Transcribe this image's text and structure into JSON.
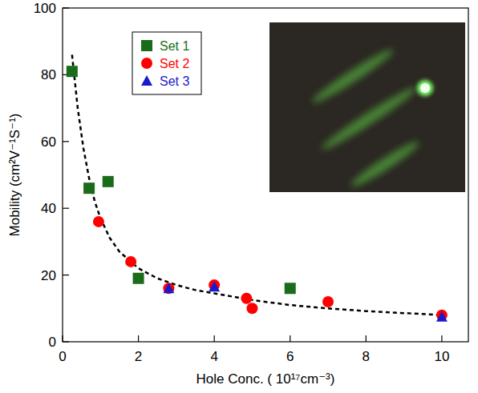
{
  "chart_data": {
    "type": "scatter",
    "x_label": "Hole Conc. ( 10¹⁷cm⁻³)",
    "y_label": "Mobility (cm²V⁻¹S⁻¹)",
    "xlim": [
      0,
      10.7
    ],
    "ylim": [
      0,
      100
    ],
    "xticks": [
      0,
      2,
      4,
      6,
      8,
      10
    ],
    "yticks": [
      0,
      20,
      40,
      60,
      80,
      100
    ],
    "legend": "upper left",
    "series": [
      {
        "name": "Set 1",
        "color": "#1a6b1a",
        "marker": "square",
        "x": [
          0.25,
          0.7,
          1.2,
          2,
          6
        ],
        "values": [
          81,
          46,
          48,
          19,
          16
        ]
      },
      {
        "name": "Set 2",
        "color": "#ff0000",
        "marker": "circle",
        "x": [
          0.95,
          1.8,
          2.8,
          4,
          4.85,
          5,
          7,
          10
        ],
        "values": [
          36,
          24,
          16,
          17,
          13,
          10,
          12,
          8
        ]
      },
      {
        "name": "Set 3",
        "color": "#1a1acc",
        "marker": "triangle",
        "x": [
          2.8,
          4,
          10
        ],
        "values": [
          16,
          16.5,
          7.5
        ]
      },
      {
        "type": "line",
        "line_style": "dashed",
        "color": "#000000",
        "x": [
          0.25,
          0.4,
          0.55,
          0.7,
          0.85,
          1,
          1.25,
          1.5,
          2,
          2.5,
          3,
          3.5,
          4,
          5,
          6,
          7,
          8,
          9,
          10
        ],
        "values": [
          86,
          70,
          58,
          49,
          42,
          37,
          31,
          27,
          22,
          19,
          17,
          15.5,
          14.5,
          12.5,
          11,
          10,
          9.2,
          8.6,
          8
        ]
      }
    ]
  }
}
